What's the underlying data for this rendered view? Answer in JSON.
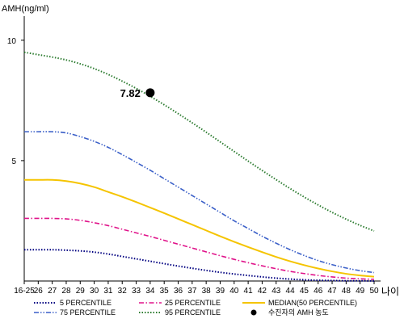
{
  "chart_data": {
    "type": "line",
    "title": "",
    "ylabel": "AMH(ng/ml)",
    "xlabel": "나이",
    "ylim": [
      0,
      11
    ],
    "yticks": [
      5,
      10
    ],
    "categories": [
      "16-25",
      "26",
      "27",
      "28",
      "29",
      "30",
      "31",
      "32",
      "33",
      "34",
      "35",
      "36",
      "37",
      "38",
      "39",
      "40",
      "41",
      "42",
      "43",
      "44",
      "45",
      "46",
      "47",
      "48",
      "49",
      "50"
    ],
    "series": [
      {
        "name": "5 PERCENTILE",
        "color": "#000080",
        "style": "dotted",
        "values": [
          1.3,
          1.3,
          1.3,
          1.28,
          1.25,
          1.2,
          1.12,
          1.02,
          0.92,
          0.82,
          0.72,
          0.62,
          0.53,
          0.44,
          0.36,
          0.29,
          0.23,
          0.17,
          0.12,
          0.08,
          0.05,
          0.03,
          0.02,
          0.01,
          0.01,
          0.0
        ]
      },
      {
        "name": "25 PERCENTILE",
        "color": "#e0138a",
        "style": "dash-dot",
        "values": [
          2.6,
          2.6,
          2.6,
          2.58,
          2.52,
          2.42,
          2.3,
          2.15,
          2.0,
          1.85,
          1.69,
          1.53,
          1.37,
          1.21,
          1.05,
          0.9,
          0.76,
          0.63,
          0.51,
          0.4,
          0.31,
          0.23,
          0.17,
          0.12,
          0.09,
          0.07
        ]
      },
      {
        "name": "MEDIAN(50 PERCENTILE)",
        "color": "#f5c400",
        "style": "solid",
        "values": [
          4.2,
          4.2,
          4.2,
          4.15,
          4.05,
          3.9,
          3.7,
          3.5,
          3.28,
          3.05,
          2.82,
          2.58,
          2.34,
          2.1,
          1.86,
          1.63,
          1.41,
          1.2,
          1.0,
          0.82,
          0.66,
          0.52,
          0.4,
          0.3,
          0.23,
          0.18
        ]
      },
      {
        "name": "75 PERCENTILE",
        "color": "#3a5fc8",
        "style": "dash-dot-dot",
        "values": [
          6.2,
          6.2,
          6.2,
          6.15,
          6.0,
          5.8,
          5.55,
          5.25,
          4.93,
          4.6,
          4.25,
          3.9,
          3.55,
          3.2,
          2.85,
          2.5,
          2.18,
          1.86,
          1.57,
          1.3,
          1.06,
          0.85,
          0.68,
          0.54,
          0.43,
          0.35
        ]
      },
      {
        "name": "95 PERCENTILE",
        "color": "#2e7d32",
        "style": "dotted",
        "values": [
          9.5,
          9.4,
          9.3,
          9.18,
          9.02,
          8.82,
          8.58,
          8.3,
          8.0,
          7.67,
          7.32,
          6.95,
          6.57,
          6.18,
          5.78,
          5.38,
          4.98,
          4.59,
          4.21,
          3.84,
          3.49,
          3.16,
          2.85,
          2.57,
          2.31,
          2.08
        ]
      }
    ],
    "point": {
      "name": "수진자의 AMH 농도",
      "category": "34",
      "value": 7.82,
      "label": "7.82",
      "color": "#000000"
    },
    "legend_position": "bottom",
    "grid": false
  }
}
